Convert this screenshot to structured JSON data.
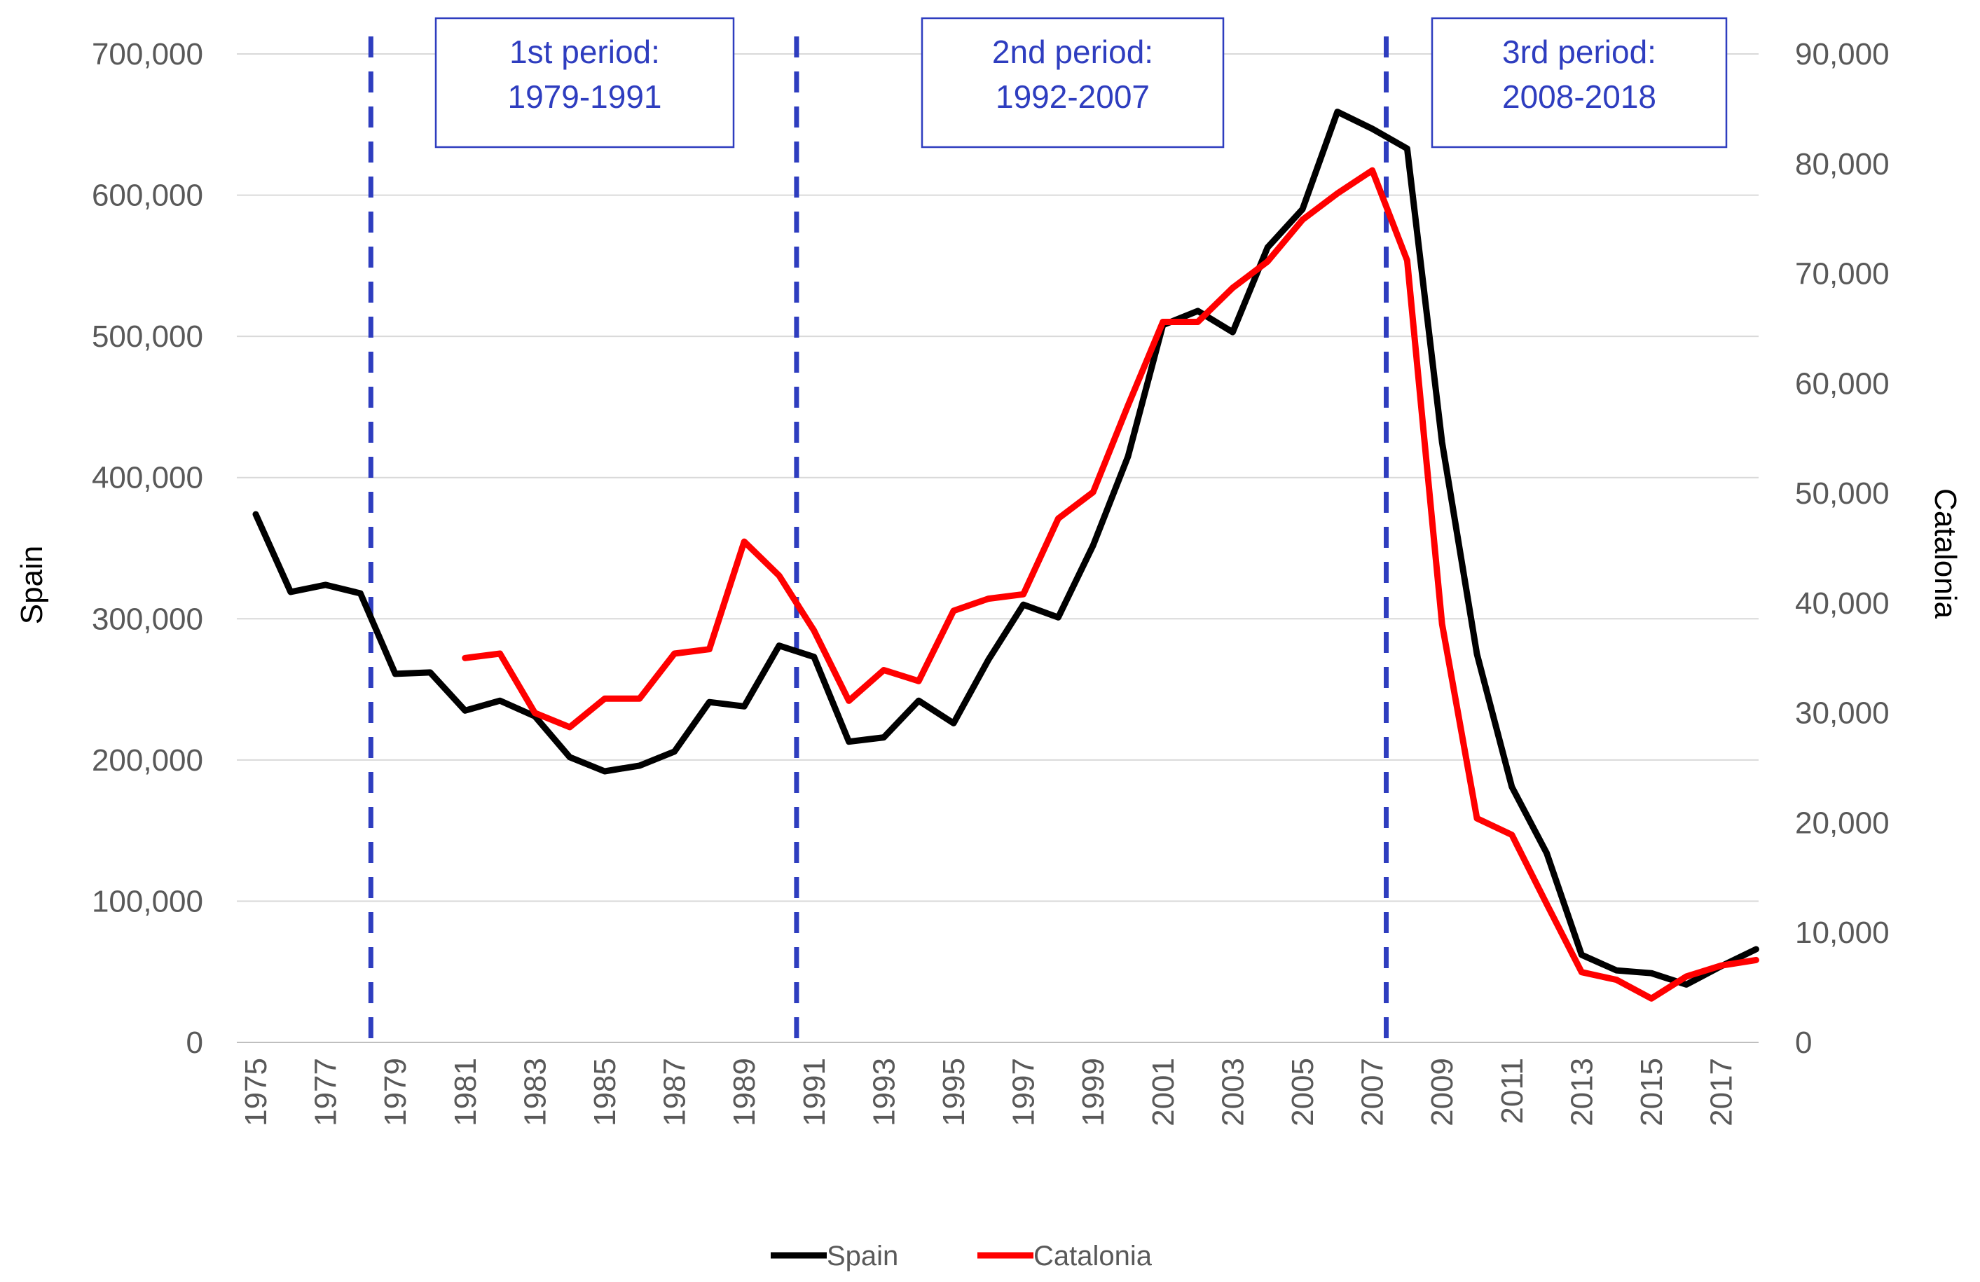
{
  "chart_data": {
    "type": "line",
    "title": "",
    "x": [
      1975,
      1976,
      1977,
      1978,
      1979,
      1980,
      1981,
      1982,
      1983,
      1984,
      1985,
      1986,
      1987,
      1988,
      1989,
      1990,
      1991,
      1992,
      1993,
      1994,
      1995,
      1996,
      1997,
      1998,
      1999,
      2000,
      2001,
      2002,
      2003,
      2004,
      2005,
      2006,
      2007,
      2008,
      2009,
      2010,
      2011,
      2012,
      2013,
      2014,
      2015,
      2016,
      2017,
      2018
    ],
    "x_tick_labels": [
      "1975",
      "1977",
      "1979",
      "1981",
      "1983",
      "1985",
      "1987",
      "1989",
      "1991",
      "1993",
      "1995",
      "1997",
      "1999",
      "2001",
      "2003",
      "2005",
      "2007",
      "2009",
      "2011",
      "2013",
      "2015",
      "2017"
    ],
    "ylabel_left": "Spain",
    "ylabel_right": "Catalonia",
    "ylim_left": [
      0,
      700000
    ],
    "ylim_right": [
      0,
      90000
    ],
    "left_tick_labels": [
      "0",
      "100,000",
      "200,000",
      "300,000",
      "400,000",
      "500,000",
      "600,000",
      "700,000"
    ],
    "right_tick_labels": [
      "0",
      "10,000",
      "20,000",
      "30,000",
      "40,000",
      "50,000",
      "60,000",
      "70,000",
      "80,000",
      "90,000"
    ],
    "grid": true,
    "legend_position": "bottom",
    "series": [
      {
        "name": "Spain",
        "axis": "left",
        "color": "#000000",
        "values": [
          374000,
          319000,
          324000,
          318000,
          261000,
          262000,
          235000,
          242000,
          231000,
          202000,
          192000,
          196000,
          206000,
          241000,
          238000,
          281000,
          273000,
          213000,
          216000,
          242000,
          226000,
          271000,
          310000,
          301000,
          352000,
          415000,
          508000,
          518000,
          503000,
          563000,
          590000,
          659000,
          647000,
          633000,
          425000,
          275000,
          181000,
          134000,
          62000,
          51000,
          49000,
          41000,
          54000,
          66000
        ]
      },
      {
        "name": "Catalonia",
        "axis": "right",
        "color": "#ff0000",
        "values": [
          null,
          null,
          null,
          null,
          null,
          null,
          35000,
          35400,
          30000,
          28700,
          31300,
          31300,
          35400,
          35800,
          45600,
          42500,
          37500,
          31100,
          33900,
          32900,
          39300,
          40400,
          40800,
          47700,
          50100,
          58000,
          65600,
          65600,
          68700,
          71100,
          74900,
          77300,
          79400,
          71200,
          38100,
          20400,
          18900,
          12600,
          6400,
          5700,
          4000,
          6000,
          7000,
          7500
        ]
      }
    ],
    "period_dividers": [
      1978.3,
      1990.5,
      2007.4
    ],
    "periods": [
      {
        "label": "1st period:",
        "range": "1979-1991"
      },
      {
        "label": "2nd period:",
        "range": "1992-2007"
      },
      {
        "label": "3rd period:",
        "range": "2008-2018"
      }
    ]
  }
}
